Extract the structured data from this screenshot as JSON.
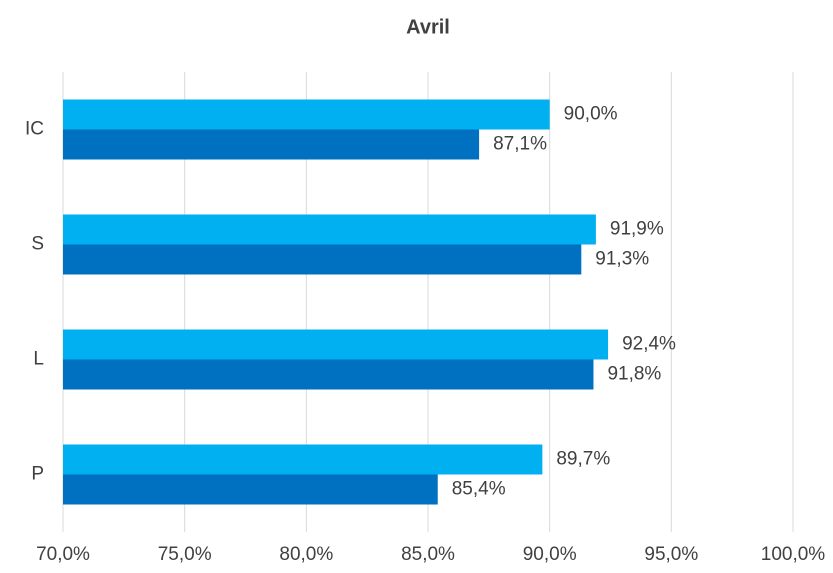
{
  "chart_data": {
    "type": "hbar",
    "title": "Avril",
    "categories": [
      "IC",
      "S",
      "L",
      "P"
    ],
    "series": [
      {
        "color": "#00b0f0",
        "values": [
          90.0,
          91.9,
          92.4,
          89.7
        ],
        "value_labels": [
          "90,0%",
          "91,9%",
          "92,4%",
          "89,7%"
        ]
      },
      {
        "color": "#0070c0",
        "values": [
          87.1,
          91.3,
          91.8,
          85.4
        ],
        "value_labels": [
          "87,1%",
          "91,3%",
          "91,8%",
          "85,4%"
        ]
      }
    ],
    "xlim": [
      70,
      100
    ],
    "xticks": [
      {
        "value": 70,
        "label": "70,0%"
      },
      {
        "value": 75,
        "label": "75,0%"
      },
      {
        "value": 80,
        "label": "80,0%"
      },
      {
        "value": 85,
        "label": "85,0%"
      },
      {
        "value": 90,
        "label": "90,0%"
      },
      {
        "value": 95,
        "label": "95,0%"
      },
      {
        "value": 100,
        "label": "100,0%"
      }
    ],
    "grid": true
  }
}
